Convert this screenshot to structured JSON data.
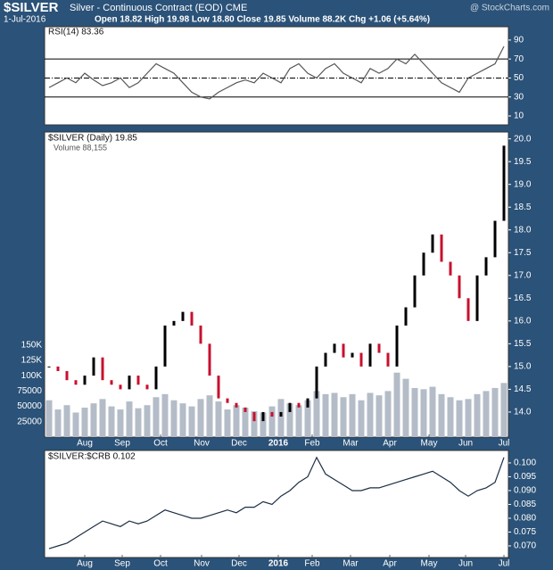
{
  "header": {
    "symbol": "$SILVER",
    "description": "Silver - Continuous Contract (EOD) CME",
    "source": "@ StockCharts.com",
    "date": "1-Jul-2016",
    "quote": "Open 18.82 High 19.98 Low 18.80 Close 19.85 Volume 88.2K Chg +1.06 (+5.64%)"
  },
  "chart_data": [
    {
      "type": "rsi",
      "series": [
        {
          "name": "RSI(14) 83.36",
          "color": "#555555",
          "values": [
            40,
            45,
            50,
            45,
            55,
            48,
            42,
            45,
            50,
            40,
            45,
            55,
            65,
            60,
            55,
            45,
            35,
            30,
            28,
            35,
            40,
            45,
            48,
            45,
            55,
            50,
            45,
            60,
            65,
            55,
            50,
            60,
            65,
            55,
            50,
            45,
            60,
            55,
            60,
            70,
            65,
            75,
            65,
            55,
            45,
            40,
            35,
            50,
            55,
            60,
            65,
            83.36
          ]
        }
      ],
      "xlim": [
        0,
        52
      ],
      "ylim": [
        0.6,
        104
      ],
      "yticks": [
        10,
        30,
        50,
        70,
        90
      ],
      "levels": [
        70,
        50,
        30
      ]
    },
    {
      "type": "price",
      "series": [
        {
          "name": "$SILVER (Daily) 19.85",
          "color": "#000000",
          "down_color": "#c8102e",
          "values": [
            15.0,
            14.9,
            14.7,
            14.6,
            14.8,
            15.2,
            14.7,
            14.6,
            14.5,
            14.8,
            14.6,
            14.5,
            15.0,
            15.9,
            16.0,
            16.2,
            15.9,
            15.5,
            14.8,
            14.3,
            14.2,
            14.1,
            14.0,
            13.8,
            14.0,
            13.9,
            14.0,
            14.2,
            14.1,
            14.3,
            15.0,
            15.3,
            15.5,
            15.2,
            15.3,
            15.0,
            15.5,
            15.3,
            15.0,
            15.9,
            16.3,
            17.0,
            17.5,
            17.9,
            17.3,
            17.0,
            16.5,
            16.0,
            17.0,
            17.4,
            18.2,
            19.85
          ]
        },
        {
          "name": "Volume 88,155",
          "color": "#b4bcc8",
          "axis": "y2",
          "values": [
            60000,
            45000,
            52000,
            40000,
            48000,
            55000,
            62000,
            50000,
            45000,
            58000,
            47000,
            52000,
            65000,
            70000,
            60000,
            55000,
            50000,
            62000,
            68000,
            58000,
            45000,
            52000,
            48000,
            42000,
            40000,
            50000,
            62000,
            55000,
            52000,
            60000,
            75000,
            70000,
            72000,
            65000,
            70000,
            60000,
            72000,
            68000,
            75000,
            105000,
            95000,
            80000,
            78000,
            82000,
            70000,
            65000,
            60000,
            62000,
            70000,
            75000,
            80000,
            88155
          ]
        }
      ],
      "xlim": [
        0,
        52
      ],
      "ylim": [
        13.45,
        20.15
      ],
      "yticks": [
        {
          "value": 14,
          "label": "14.0"
        },
        14.5,
        {
          "value": 15,
          "label": "15.0"
        },
        15.5,
        {
          "value": 16,
          "label": "16.0"
        },
        16.5,
        {
          "value": 17,
          "label": "17.0"
        },
        17.5,
        {
          "value": 18,
          "label": "18.0"
        },
        18.5,
        {
          "value": 19,
          "label": "19.0"
        },
        19.5,
        {
          "value": 20,
          "label": "20.0"
        }
      ],
      "y2lim": [
        0,
        497000
      ],
      "y2ticks": [
        25000,
        50000,
        75000,
        {
          "value": 100000,
          "label": "100K"
        },
        {
          "value": 125000,
          "label": "125K"
        },
        {
          "value": 150000,
          "label": "150K"
        }
      ],
      "xticks": [
        {
          "value": 4.5,
          "label": "Aug"
        },
        {
          "value": 8.7,
          "label": "Sep"
        },
        {
          "value": 13,
          "label": "Oct"
        },
        {
          "value": 17.6,
          "label": "Nov"
        },
        {
          "value": 21.8,
          "label": "Dec"
        },
        {
          "value": 26.2,
          "label": "2016"
        },
        {
          "value": 30,
          "label": "Feb"
        },
        {
          "value": 34.3,
          "label": "Mar"
        },
        {
          "value": 38.7,
          "label": "Apr"
        },
        {
          "value": 43.1,
          "label": "May"
        },
        {
          "value": 47.2,
          "label": "Jun"
        },
        {
          "value": 51.5,
          "label": "Jul"
        }
      ]
    },
    {
      "type": "line",
      "series": [
        {
          "name": "$SILVER:$CRB 0.102",
          "color": "#1c2e44",
          "values": [
            0.069,
            0.07,
            0.071,
            0.073,
            0.075,
            0.077,
            0.079,
            0.078,
            0.077,
            0.079,
            0.078,
            0.079,
            0.081,
            0.083,
            0.082,
            0.081,
            0.08,
            0.08,
            0.081,
            0.082,
            0.083,
            0.082,
            0.084,
            0.084,
            0.086,
            0.085,
            0.088,
            0.09,
            0.093,
            0.095,
            0.102,
            0.096,
            0.094,
            0.092,
            0.09,
            0.09,
            0.091,
            0.091,
            0.092,
            0.093,
            0.094,
            0.095,
            0.096,
            0.097,
            0.095,
            0.093,
            0.09,
            0.088,
            0.09,
            0.091,
            0.093,
            0.102
          ]
        }
      ],
      "xlim": [
        0,
        52
      ],
      "ylim": [
        0.0658,
        0.1045
      ],
      "yticks": [
        {
          "value": 0.07,
          "label": "0.070"
        },
        {
          "value": 0.075,
          "label": "0.075"
        },
        {
          "value": 0.08,
          "label": "0.080"
        },
        {
          "value": 0.085,
          "label": "0.085"
        },
        {
          "value": 0.09,
          "label": "0.090"
        },
        {
          "value": 0.095,
          "label": "0.095"
        },
        {
          "value": 0.1,
          "label": "0.100"
        }
      ],
      "xticks": [
        {
          "value": 4.5,
          "label": "Aug"
        },
        {
          "value": 8.7,
          "label": "Sep"
        },
        {
          "value": 13,
          "label": "Oct"
        },
        {
          "value": 17.6,
          "label": "Nov"
        },
        {
          "value": 21.8,
          "label": "Dec"
        },
        {
          "value": 26.2,
          "label": "2016"
        },
        {
          "value": 30,
          "label": "Feb"
        },
        {
          "value": 34.3,
          "label": "Mar"
        },
        {
          "value": 38.7,
          "label": "Apr"
        },
        {
          "value": 43.1,
          "label": "May"
        },
        {
          "value": 47.2,
          "label": "Jun"
        },
        {
          "value": 51.5,
          "label": "Jul"
        }
      ]
    }
  ]
}
